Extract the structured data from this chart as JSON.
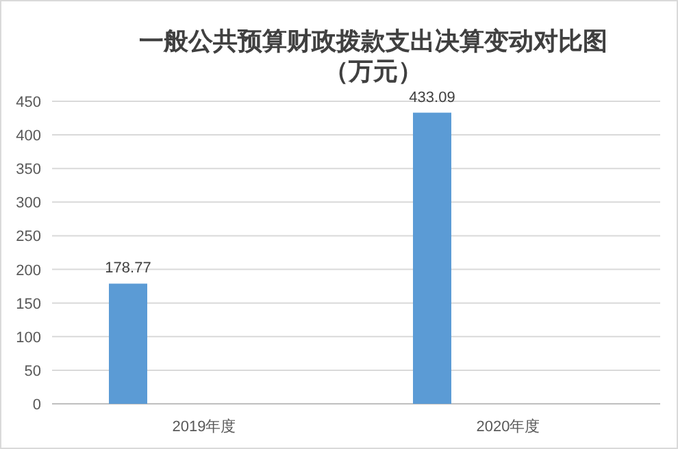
{
  "chart_data": {
    "type": "bar",
    "title": "一般公共预算财政拨款支出决算变动对比图",
    "subtitle": "（万元）",
    "categories": [
      "2019年度",
      "2020年度"
    ],
    "series": [
      {
        "color": "#5b9bd5",
        "values": [
          178.77,
          433.09
        ]
      }
    ],
    "ylim": [
      0,
      450
    ],
    "yticks": [
      0,
      50,
      100,
      150,
      200,
      250,
      300,
      350,
      400,
      450
    ],
    "grid": "y",
    "data_labels": true
  }
}
